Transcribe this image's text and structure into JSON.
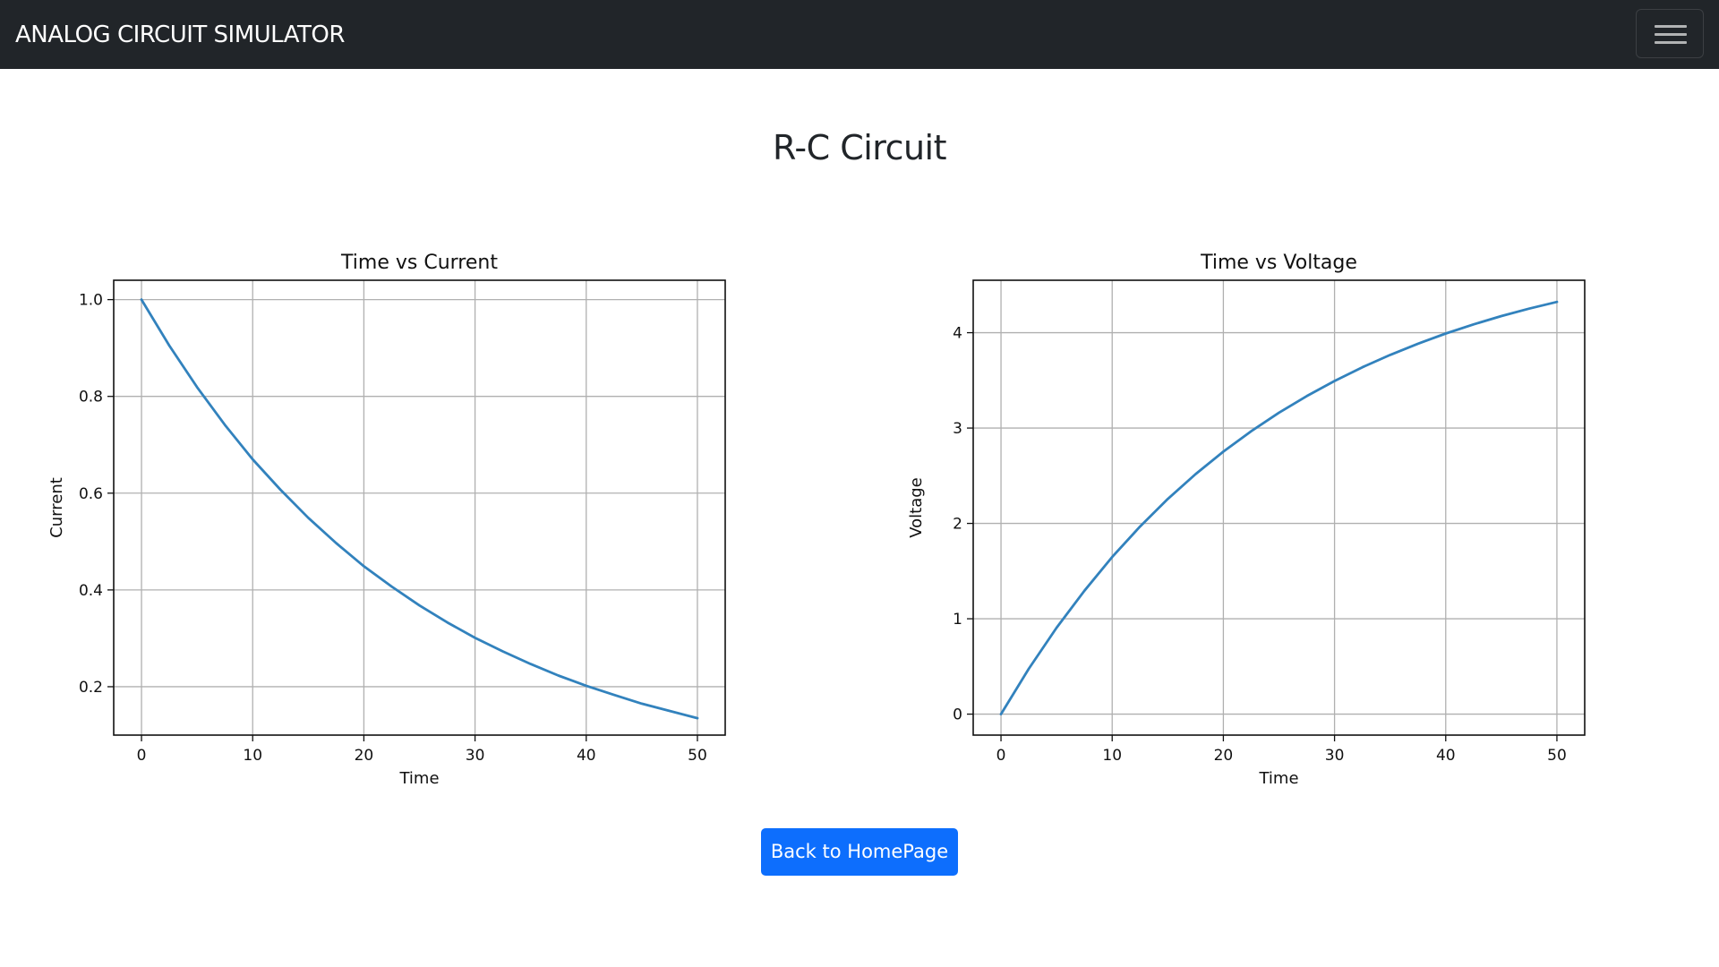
{
  "navbar": {
    "brand": "ANALOG CIRCUIT SIMULATOR",
    "toggler_icon": "hamburger-menu-icon"
  },
  "page": {
    "title": "R-C Circuit",
    "back_button_label": "Back to HomePage"
  },
  "colors": {
    "navbar_bg": "#212529",
    "line": "#3282bd",
    "button_bg": "#0d6efd",
    "grid": "#b0b0b0"
  },
  "chart_data": [
    {
      "type": "line",
      "title": "Time vs Current",
      "xlabel": "Time",
      "ylabel": "Current",
      "xlim": [
        -2.5,
        52.5
      ],
      "ylim": [
        0.1,
        1.04
      ],
      "xticks": [
        0,
        10,
        20,
        30,
        40,
        50
      ],
      "xtick_labels": [
        "0",
        "10",
        "20",
        "30",
        "40",
        "50"
      ],
      "yticks": [
        0.2,
        0.4,
        0.6,
        0.8,
        1.0
      ],
      "ytick_labels": [
        "0.2",
        "0.4",
        "0.6",
        "0.8",
        "1.0"
      ],
      "grid": true,
      "series": [
        {
          "x": [
            0,
            2.5,
            5,
            7.5,
            10,
            12.5,
            15,
            17.5,
            20,
            22.5,
            25,
            27.5,
            30,
            32.5,
            35,
            37.5,
            40,
            42.5,
            45,
            47.5,
            50
          ],
          "values": [
            1.0,
            0.905,
            0.819,
            0.741,
            0.67,
            0.607,
            0.549,
            0.497,
            0.449,
            0.407,
            0.368,
            0.333,
            0.301,
            0.273,
            0.247,
            0.223,
            0.202,
            0.183,
            0.165,
            0.15,
            0.135
          ]
        }
      ]
    },
    {
      "type": "line",
      "title": "Time vs Voltage",
      "xlabel": "Time",
      "ylabel": "Voltage",
      "xlim": [
        -2.5,
        52.5
      ],
      "ylim": [
        -0.22,
        4.55
      ],
      "xticks": [
        0,
        10,
        20,
        30,
        40,
        50
      ],
      "xtick_labels": [
        "0",
        "10",
        "20",
        "30",
        "40",
        "50"
      ],
      "yticks": [
        0,
        1,
        2,
        3,
        4
      ],
      "ytick_labels": [
        "0",
        "1",
        "2",
        "3",
        "4"
      ],
      "grid": true,
      "series": [
        {
          "x": [
            0,
            2.5,
            5,
            7.5,
            10,
            12.5,
            15,
            17.5,
            20,
            22.5,
            25,
            27.5,
            30,
            32.5,
            35,
            37.5,
            40,
            42.5,
            45,
            47.5,
            50
          ],
          "values": [
            0.0,
            0.476,
            0.906,
            1.294,
            1.648,
            1.967,
            2.256,
            2.517,
            2.753,
            2.967,
            3.161,
            3.335,
            3.494,
            3.637,
            3.767,
            3.884,
            3.991,
            4.087,
            4.174,
            4.252,
            4.323
          ]
        }
      ]
    }
  ]
}
